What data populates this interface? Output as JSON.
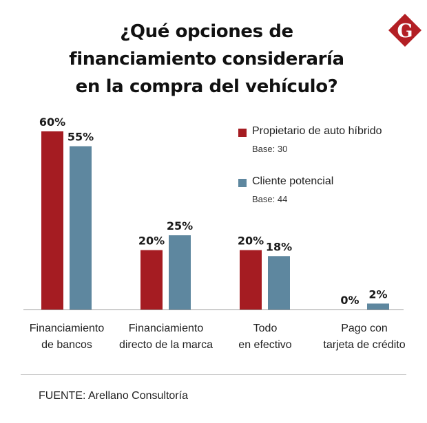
{
  "colors": {
    "series1": "#a51c22",
    "series2": "#5e879f",
    "axis": "#9a9a9a",
    "logo": "#b31f24"
  },
  "title_lines": [
    "¿Qué opciones de",
    "financiamiento consideraría",
    "en la compra del vehículo?"
  ],
  "logo": {
    "letter": "G",
    "icon": "diamond-g-logo"
  },
  "legend": [
    {
      "name": "Propietario de auto híbrido",
      "base": "Base: 30"
    },
    {
      "name": "Cliente potencial",
      "base": "Base: 44"
    }
  ],
  "chart_data": {
    "type": "bar",
    "title": "¿Qué opciones de financiamiento consideraría en la compra del vehículo?",
    "categories": [
      [
        "Financiamiento",
        "de bancos"
      ],
      [
        "Financiamiento",
        "directo de la marca"
      ],
      [
        "Todo",
        "en efectivo"
      ],
      [
        "Pago con",
        "tarjeta de crédito"
      ]
    ],
    "series": [
      {
        "name": "Propietario de auto híbrido",
        "values": [
          60,
          20,
          20,
          0
        ],
        "labels": [
          "60%",
          "20%",
          "20%",
          "0%"
        ]
      },
      {
        "name": "Cliente potencial",
        "values": [
          55,
          25,
          18,
          2
        ],
        "labels": [
          "55%",
          "25%",
          "18%",
          "2%"
        ]
      }
    ],
    "unit": "%",
    "ylim": [
      0,
      60
    ],
    "xlabel": "",
    "ylabel": "",
    "grid": false,
    "legend_position": "top-right"
  },
  "source": "FUENTE: Arellano Consultoría"
}
